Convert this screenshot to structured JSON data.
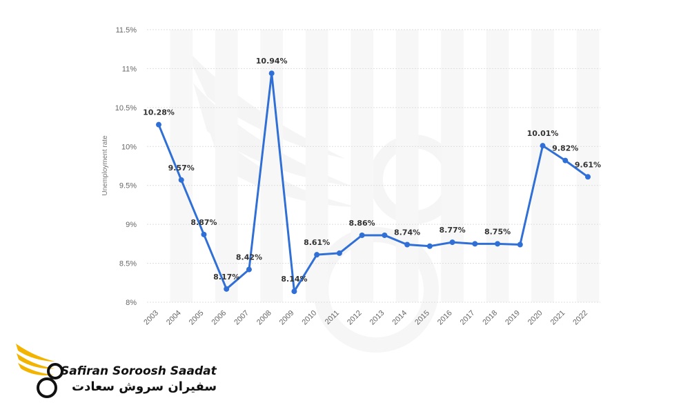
{
  "chart_data": {
    "type": "line",
    "title": "",
    "xlabel": "",
    "ylabel": "Unemployment rate",
    "categories": [
      "2003",
      "2004",
      "2005",
      "2006",
      "2007",
      "2008",
      "2009",
      "2010",
      "2011",
      "2012",
      "2013",
      "2014",
      "2015",
      "2016",
      "2017",
      "2018",
      "2019",
      "2020",
      "2021",
      "2022"
    ],
    "series": [
      {
        "name": "",
        "values": [
          10.28,
          9.57,
          8.87,
          8.17,
          8.42,
          10.94,
          8.14,
          8.61,
          8.63,
          8.86,
          8.86,
          8.74,
          8.72,
          8.77,
          8.75,
          8.75,
          8.74,
          10.01,
          9.82,
          9.61
        ],
        "labels": [
          "10.28%",
          "9.57%",
          "8.87%",
          "8.17%",
          "8.42%",
          "10.94%",
          "8.14%",
          "8.61%",
          "",
          "8.86%",
          "",
          "8.74%",
          "",
          "8.77%",
          "",
          "8.75%",
          "",
          "10.01%",
          "9.82%",
          "9.61%"
        ]
      }
    ],
    "ylim": [
      8,
      11.5
    ],
    "yticks": [
      8,
      8.5,
      9,
      9.5,
      10,
      10.5,
      11,
      11.5
    ],
    "ytick_labels": [
      "8%",
      "8.5%",
      "9%",
      "9.5%",
      "10%",
      "10.5%",
      "11%",
      "11.5%"
    ],
    "grid": true,
    "legend": "none",
    "line_color": "#2f6fd6"
  },
  "watermark": {
    "brand_en": "Safiran Soroosh Saadat",
    "brand_fa": "سفیران سروش سعادت",
    "accent_color": "#f2b400"
  }
}
